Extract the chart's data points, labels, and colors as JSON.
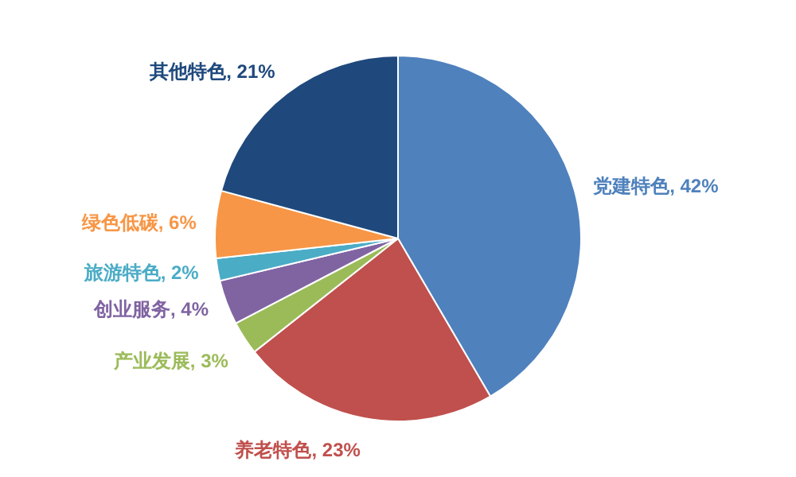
{
  "chart_data": {
    "type": "pie",
    "categories": [
      "党建特色",
      "养老特色",
      "产业发展",
      "创业服务",
      "旅游特色",
      "绿色低碳",
      "其他特色"
    ],
    "values": [
      42,
      23,
      3,
      4,
      2,
      6,
      21
    ],
    "value_labels": [
      "42%",
      "23%",
      "3%",
      "4%",
      "2%",
      "6%",
      "21%"
    ],
    "colors": [
      "#4f81bd",
      "#c0504d",
      "#9bbb59",
      "#8064a2",
      "#4bacc6",
      "#f79646",
      "#1f497d"
    ],
    "legend": false
  }
}
